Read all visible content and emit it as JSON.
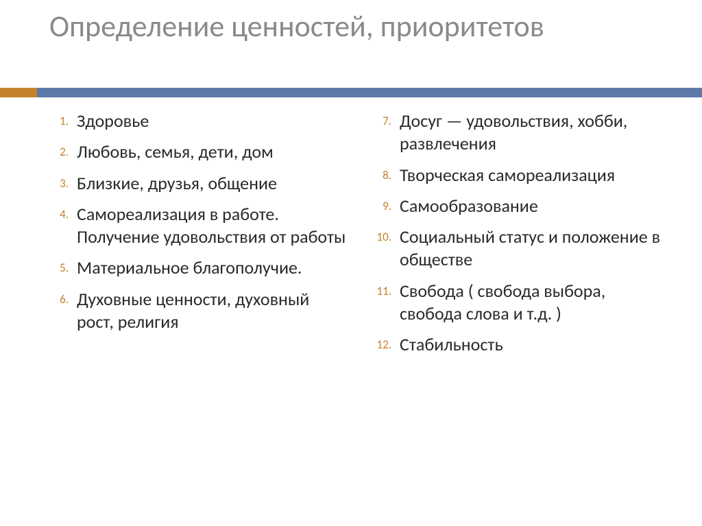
{
  "colors": {
    "title": "#8a8a8a",
    "ruleLeft": "#c4822a",
    "ruleRight": "#5e79a8",
    "number": "#c4822a",
    "body": "#2a2a2a",
    "background": "#ffffff"
  },
  "typography": {
    "titleSize": 44,
    "bodySize": 26,
    "numberSize": 17,
    "family": "Calibri"
  },
  "title": "Определение ценностей, приоритетов",
  "list": {
    "left": [
      "Здоровье",
      "Любовь, семья, дети, дом",
      "Близкие, друзья, общение",
      "Самореализация в работе. Получение удовольствия от работы",
      "Материальное благополучие.",
      "Духовные ценности, духовный рост, религия"
    ],
    "right": [
      "Досуг — удовольствия, хобби, развлечения",
      "Творческая самореализация",
      "Самообразование",
      "Социальный статус и положение в обществе",
      "Свобода ( свобода выбора, свобода слова и т.д. )",
      "Стабильность"
    ],
    "rightStart": 6
  }
}
